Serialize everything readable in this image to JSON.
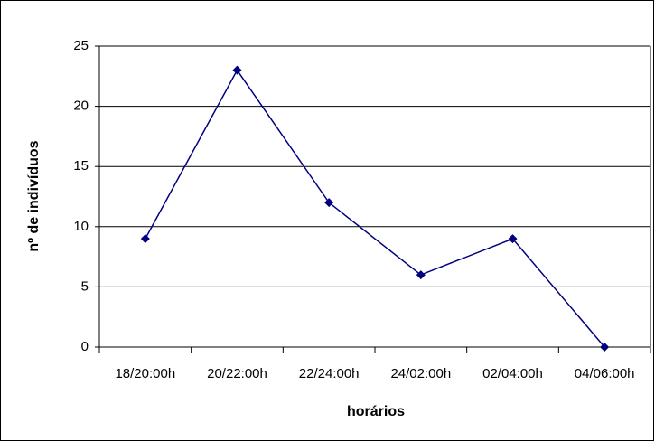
{
  "chart_data": {
    "type": "line",
    "x_label": "horários",
    "y_label": "nº de indivíduos",
    "categories": [
      "18/20:00h",
      "20/22:00h",
      "22/24:00h",
      "24/02:00h",
      "02/04:00h",
      "04/06:00h"
    ],
    "values": [
      9,
      23,
      12,
      6,
      9,
      0
    ],
    "color": "#000080",
    "ylim": [
      0,
      25
    ],
    "yticks": [
      0,
      5,
      10,
      15,
      20,
      25
    ],
    "grid": true
  }
}
